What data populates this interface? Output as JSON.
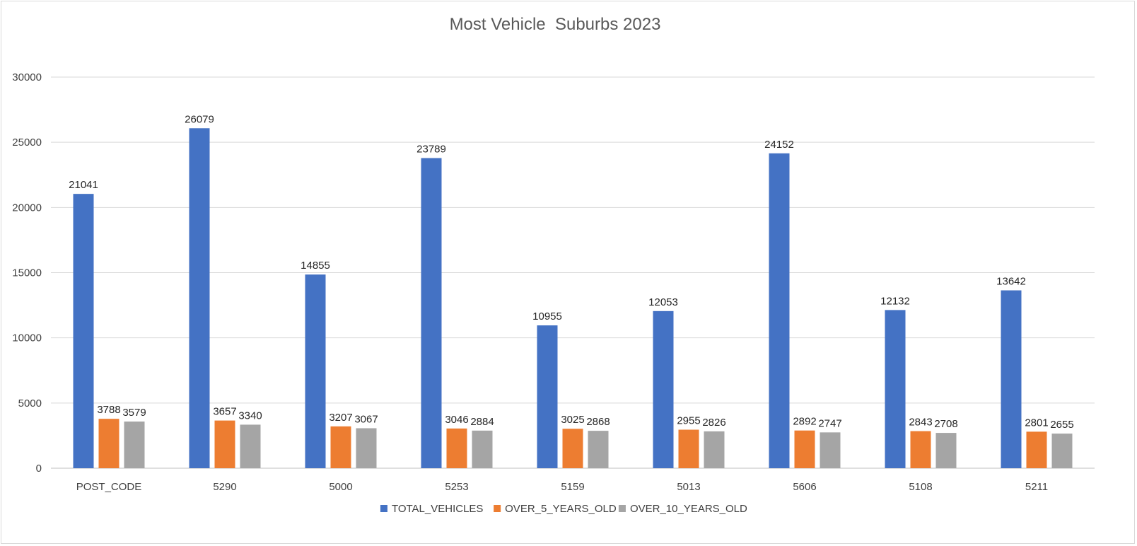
{
  "chart_data": {
    "type": "bar",
    "title": "Most Vehicle  Suburbs 2023",
    "xlabel": "",
    "ylabel": "",
    "categories": [
      "POST_CODE",
      "5290",
      "5000",
      "5253",
      "5159",
      "5013",
      "5606",
      "5108",
      "5211"
    ],
    "series": [
      {
        "name": "TOTAL_VEHICLES",
        "color": "#4472C4",
        "values": [
          21041,
          26079,
          14855,
          23789,
          10955,
          12053,
          24152,
          12132,
          13642
        ]
      },
      {
        "name": "OVER_5_YEARS_OLD",
        "color": "#ED7D31",
        "values": [
          3788,
          3657,
          3207,
          3046,
          3025,
          2955,
          2892,
          2843,
          2801
        ]
      },
      {
        "name": "OVER_10_YEARS_OLD",
        "color": "#A5A5A5",
        "values": [
          3579,
          3340,
          3067,
          2884,
          2868,
          2826,
          2747,
          2708,
          2655
        ]
      }
    ],
    "ylim": [
      0,
      30000
    ],
    "yticks": [
      0,
      5000,
      10000,
      15000,
      20000,
      25000,
      30000
    ],
    "grid": true,
    "legend": "bottom",
    "data_labels": true
  }
}
